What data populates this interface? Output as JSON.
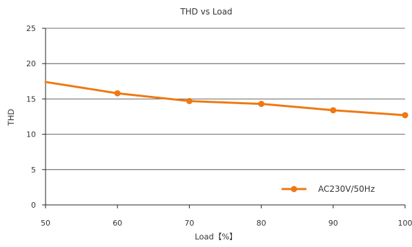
{
  "chart_data": {
    "type": "line",
    "title": "THD vs Load",
    "xlabel": "Load【%】",
    "ylabel": "THD",
    "x": [
      50,
      60,
      70,
      80,
      90,
      100
    ],
    "xticks": [
      "50",
      "60",
      "70",
      "80",
      "90",
      "100"
    ],
    "xlim": [
      50,
      100
    ],
    "yticks": [
      "0",
      "5",
      "10",
      "15",
      "20",
      "25"
    ],
    "ylim": [
      0,
      25
    ],
    "grid": "horizontal",
    "legend_position": "bottom-right",
    "series": [
      {
        "name": "AC230V/50Hz",
        "values": [
          17.4,
          15.8,
          14.7,
          14.3,
          13.4,
          12.7
        ],
        "markers": [
          false,
          true,
          true,
          true,
          true,
          true
        ],
        "color": "#F07812"
      }
    ]
  }
}
